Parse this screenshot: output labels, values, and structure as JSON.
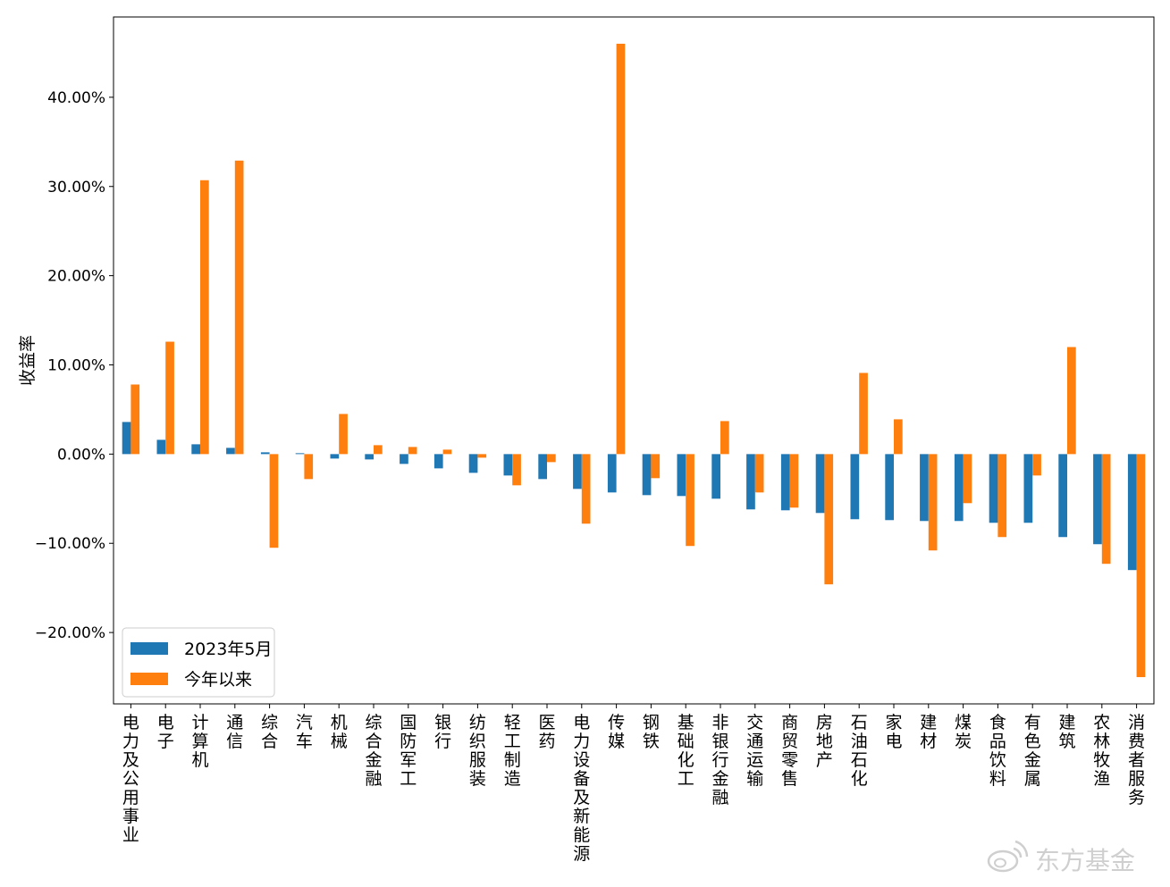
{
  "colors": {
    "series_1": "#1f77b4",
    "series_2": "#ff7f0e",
    "watermark": "#cfcfcf"
  },
  "watermark": {
    "text": "东方基金",
    "icon": "weibo-icon"
  },
  "chart_data": {
    "type": "bar",
    "title": "",
    "xlabel": "",
    "ylabel": "收益率",
    "ylim": [
      -28.0,
      49.0
    ],
    "yticks": [
      -20,
      -10,
      0,
      10,
      20,
      30,
      40
    ],
    "ytick_labels": [
      "−20.00%",
      "−10.00%",
      "0.00%",
      "10.00%",
      "20.00%",
      "30.00%",
      "40.00%"
    ],
    "legend_position": "lower-left",
    "grid": false,
    "categories": [
      "电力及公用事业",
      "电子",
      "计算机",
      "通信",
      "综合",
      "汽车",
      "机械",
      "综合金融",
      "国防军工",
      "银行",
      "纺织服装",
      "轻工制造",
      "医药",
      "电力设备及新能源",
      "传媒",
      "钢铁",
      "基础化工",
      "非银行金融",
      "交通运输",
      "商贸零售",
      "房地产",
      "石油石化",
      "家电",
      "建材",
      "煤炭",
      "食品饮料",
      "有色金属",
      "建筑",
      "农林牧渔",
      "消费者服务"
    ],
    "series": [
      {
        "name": "2023年5月",
        "values": [
          3.6,
          1.6,
          1.1,
          0.7,
          0.2,
          0.1,
          -0.5,
          -0.6,
          -1.1,
          -1.6,
          -2.1,
          -2.4,
          -2.8,
          -3.9,
          -4.3,
          -4.6,
          -4.7,
          -5.0,
          -6.2,
          -6.3,
          -6.6,
          -7.3,
          -7.4,
          -7.5,
          -7.5,
          -7.7,
          -7.7,
          -9.3,
          -10.1,
          -13.0
        ]
      },
      {
        "name": "今年以来",
        "values": [
          7.8,
          12.6,
          30.7,
          32.9,
          -10.5,
          -2.8,
          4.5,
          1.0,
          0.8,
          0.5,
          -0.4,
          -3.5,
          -0.9,
          -7.8,
          46.0,
          -2.7,
          -10.3,
          3.7,
          -4.3,
          -6.0,
          -14.6,
          9.1,
          3.9,
          -10.8,
          -5.5,
          -9.3,
          -2.4,
          12.0,
          -12.3,
          -25.0
        ]
      }
    ]
  }
}
